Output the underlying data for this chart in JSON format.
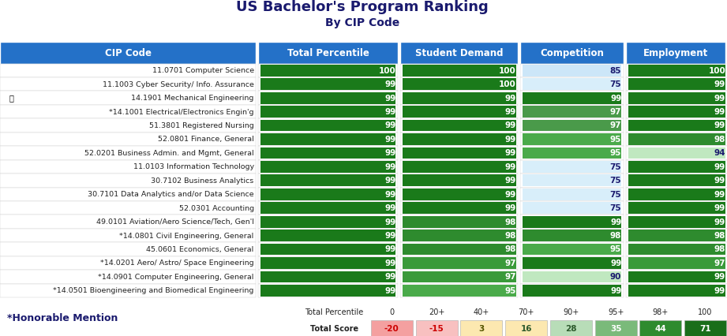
{
  "title": "US Bachelor's Program Ranking",
  "subtitle": "By CIP Code",
  "title_color": "#1a1a6e",
  "header_bg": "#2471c8",
  "headers": [
    "CIP Code",
    "Total Percentile",
    "Student Demand",
    "Competition",
    "Employment"
  ],
  "rows": [
    {
      "cip": "11.0701 Computer Science",
      "total": 100,
      "demand": 100,
      "competition": 85,
      "employment": 100,
      "medal": false
    },
    {
      "cip": "11.1003 Cyber Security/ Info. Assurance",
      "total": 99,
      "demand": 100,
      "competition": 75,
      "employment": 99,
      "medal": false
    },
    {
      "cip": "14.1901 Mechanical Engineering",
      "total": 99,
      "demand": 99,
      "competition": 99,
      "employment": 99,
      "medal": true
    },
    {
      "cip": "*14.1001 Electrical/Electronics Engin'g",
      "total": 99,
      "demand": 99,
      "competition": 97,
      "employment": 99,
      "medal": false
    },
    {
      "cip": "51.3801 Registered Nursing",
      "total": 99,
      "demand": 99,
      "competition": 97,
      "employment": 99,
      "medal": false
    },
    {
      "cip": "52.0801 Finance, General",
      "total": 99,
      "demand": 99,
      "competition": 95,
      "employment": 98,
      "medal": false
    },
    {
      "cip": "52.0201 Business Admin. and Mgmt, General",
      "total": 99,
      "demand": 99,
      "competition": 95,
      "employment": 94,
      "medal": false
    },
    {
      "cip": "11.0103 Information Technology",
      "total": 99,
      "demand": 99,
      "competition": 75,
      "employment": 99,
      "medal": false
    },
    {
      "cip": "30.7102 Business Analytics",
      "total": 99,
      "demand": 99,
      "competition": 75,
      "employment": 99,
      "medal": false
    },
    {
      "cip": "30.7101 Data Analytics and/or Data Science",
      "total": 99,
      "demand": 99,
      "competition": 75,
      "employment": 99,
      "medal": false
    },
    {
      "cip": "52.0301 Accounting",
      "total": 99,
      "demand": 99,
      "competition": 75,
      "employment": 99,
      "medal": false
    },
    {
      "cip": "49.0101 Aviation/Aero Science/Tech, Gen'l",
      "total": 99,
      "demand": 98,
      "competition": 99,
      "employment": 99,
      "medal": false
    },
    {
      "cip": "*14.0801 Civil Engineering, General",
      "total": 99,
      "demand": 98,
      "competition": 98,
      "employment": 98,
      "medal": false
    },
    {
      "cip": "45.0601 Economics, General",
      "total": 99,
      "demand": 98,
      "competition": 95,
      "employment": 98,
      "medal": false
    },
    {
      "cip": "*14.0201 Aero/ Astro/ Space Engineering",
      "total": 99,
      "demand": 97,
      "competition": 99,
      "employment": 97,
      "medal": false
    },
    {
      "cip": "*14.0901 Computer Engineering, General",
      "total": 99,
      "demand": 97,
      "competition": 90,
      "employment": 99,
      "medal": false
    },
    {
      "cip": "*14.0501 Bioengineering and Biomedical Engineering",
      "total": 99,
      "demand": 95,
      "competition": 99,
      "employment": 99,
      "medal": false
    }
  ],
  "legend_percentiles": [
    "0",
    "20+",
    "40+",
    "70+",
    "90+",
    "95+",
    "98+",
    "100"
  ],
  "legend_scores": [
    "-20",
    "-15",
    "3",
    "16",
    "28",
    "35",
    "44",
    "71"
  ],
  "legend_bg_colors": [
    "#f4a0a0",
    "#f8c0c0",
    "#fce8b0",
    "#fce8b0",
    "#b8ddb8",
    "#7aba7a",
    "#2e8b2e",
    "#1a6e1a"
  ],
  "legend_txt_colors": [
    "#cc0000",
    "#cc0000",
    "#555500",
    "#2d5a2d",
    "#2d5a2d",
    "#ffffff",
    "#ffffff",
    "#ffffff"
  ]
}
